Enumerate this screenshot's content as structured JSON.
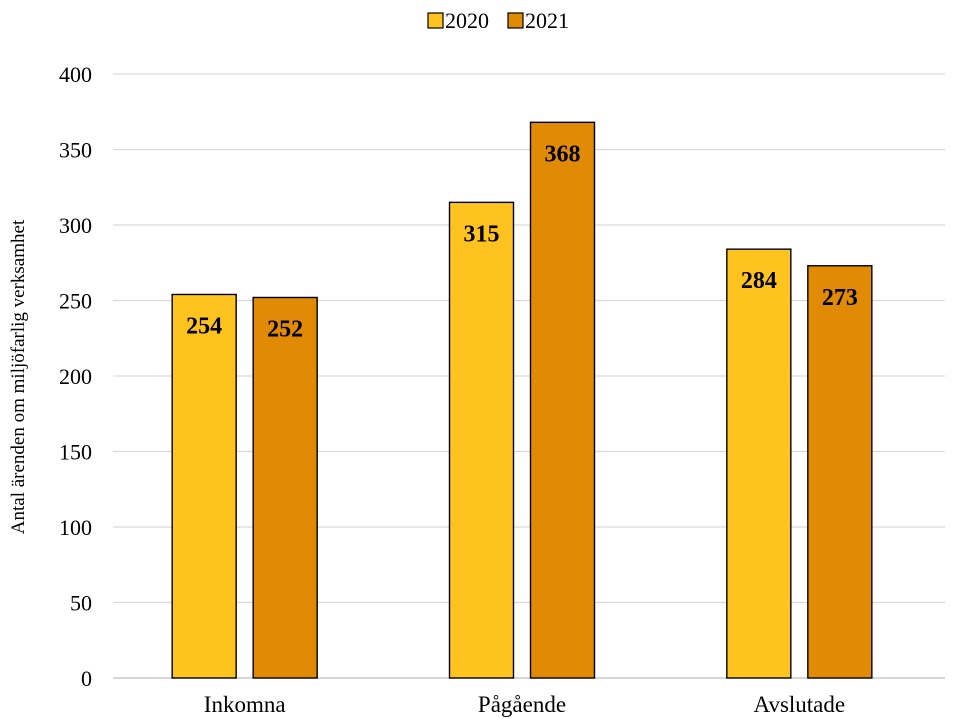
{
  "chart_data": {
    "type": "bar",
    "title": "",
    "xlabel": "",
    "ylabel": "Antal ärenden om miljöfarlig verksamhet",
    "categories": [
      "Inkomna",
      "Pågående",
      "Avslutade"
    ],
    "series": [
      {
        "name": "2020",
        "values": [
          254,
          315,
          284
        ],
        "color": "#FFC31F"
      },
      {
        "name": "2021",
        "values": [
          252,
          368,
          273
        ],
        "color": "#E08A06"
      }
    ],
    "ylim": [
      0,
      400
    ],
    "yticks": [
      0,
      50,
      100,
      150,
      200,
      250,
      300,
      350,
      400
    ],
    "grid": true,
    "legend": "top-center",
    "data_labels": true
  }
}
